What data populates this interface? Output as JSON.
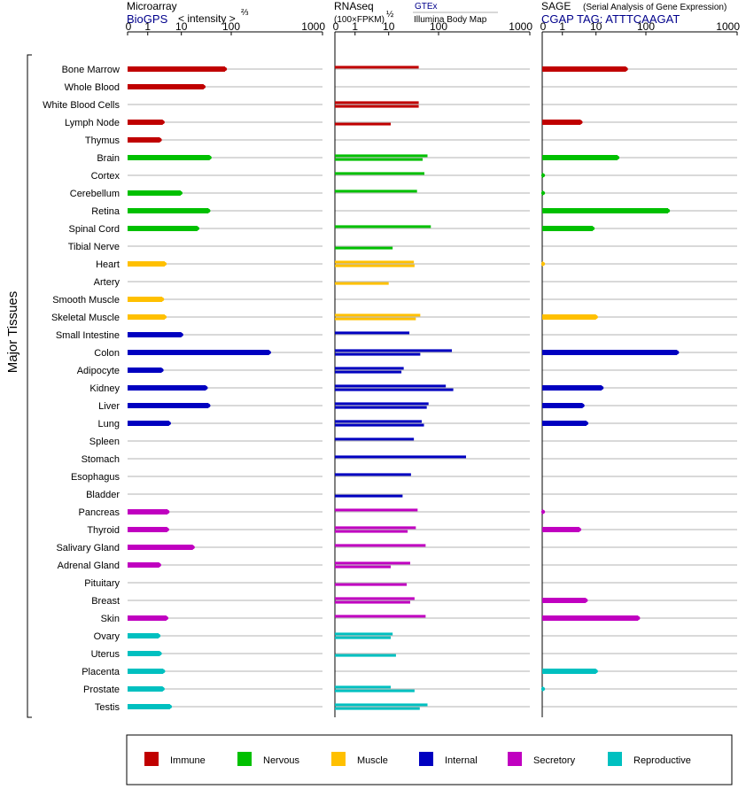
{
  "headers": {
    "microarray": {
      "title": "Microarray",
      "source": "BioGPS",
      "unit": "< intensity >",
      "unit_exp": "⅔"
    },
    "rnaseq": {
      "title": "RNAseq",
      "unit": "(100×FPKM)",
      "unit_exp": "½",
      "source1": "GTEx",
      "source2": "Illumina Body Map"
    },
    "sage": {
      "title": "SAGE",
      "subtitle": "(Serial Analysis of Gene Expression)",
      "tag": "CGAP TAG: ATTTCAAGAT"
    }
  },
  "y_axis_label": "Major Tissues",
  "chart_data": {
    "type": "bar",
    "orientation": "horizontal",
    "scale_note": "non-linear axis; tick labels 0, 1, 10, 100, 1000",
    "ticks": [
      "0",
      "1",
      "10",
      "100",
      "1000"
    ],
    "xlim": [
      0,
      1000
    ],
    "grid": true,
    "legend_position": "bottom",
    "categories": [
      "Bone Marrow",
      "Whole Blood",
      "White Blood Cells",
      "Lymph Node",
      "Thymus",
      "Brain",
      "Cortex",
      "Cerebellum",
      "Retina",
      "Spinal Cord",
      "Tibial Nerve",
      "Heart",
      "Artery",
      "Smooth Muscle",
      "Skeletal Muscle",
      "Small Intestine",
      "Colon",
      "Adipocyte",
      "Kidney",
      "Liver",
      "Lung",
      "Spleen",
      "Stomach",
      "Esophagus",
      "Bladder",
      "Pancreas",
      "Thyroid",
      "Salivary Gland",
      "Adrenal Gland",
      "Pituitary",
      "Breast",
      "Skin",
      "Ovary",
      "Uterus",
      "Placenta",
      "Prostate",
      "Testis"
    ],
    "category_group": [
      "Immune",
      "Immune",
      "Immune",
      "Immune",
      "Immune",
      "Nervous",
      "Nervous",
      "Nervous",
      "Nervous",
      "Nervous",
      "Nervous",
      "Muscle",
      "Muscle",
      "Muscle",
      "Muscle",
      "Internal",
      "Internal",
      "Internal",
      "Internal",
      "Internal",
      "Internal",
      "Internal",
      "Internal",
      "Internal",
      "Internal",
      "Secretory",
      "Secretory",
      "Secretory",
      "Secretory",
      "Secretory",
      "Secretory",
      "Secretory",
      "Reproductive",
      "Reproductive",
      "Reproductive",
      "Reproductive",
      "Reproductive"
    ],
    "groups": [
      {
        "name": "Immune",
        "color": "#c00000"
      },
      {
        "name": "Nervous",
        "color": "#00c000"
      },
      {
        "name": "Muscle",
        "color": "#ffc000"
      },
      {
        "name": "Internal",
        "color": "#0000c0"
      },
      {
        "name": "Secretory",
        "color": "#c000c0"
      },
      {
        "name": "Reproductive",
        "color": "#00c0c0"
      }
    ],
    "panels": [
      {
        "name": "Microarray",
        "series": [
          {
            "values": [
              75,
              28,
              null,
              2.8,
              2.3,
              37,
              null,
              9.5,
              35,
              21,
              null,
              3.2,
              null,
              2.7,
              3.2,
              10,
              260,
              2.6,
              31,
              35,
              4.3,
              null,
              null,
              null,
              null,
              3.9,
              3.8,
              17,
              2.2,
              null,
              null,
              3.6,
              2.1,
              2.3,
              2.9,
              2.8,
              4.6
            ]
          }
        ]
      },
      {
        "name": "RNAseq",
        "series": [
          {
            "name": "GTEx",
            "values": [
              40,
              null,
              40,
              null,
              null,
              60,
              52,
              37,
              null,
              70,
              null,
              32,
              null,
              null,
              43,
              26,
              140,
              20,
              120,
              63,
              46,
              32,
              200,
              28,
              null,
              38,
              35,
              55,
              27,
              null,
              33,
              55,
              12,
              null,
              null,
              11,
              60
            ]
          },
          {
            "name": "Illumina Body Map",
            "values": [
              null,
              null,
              40,
              11,
              null,
              48,
              null,
              null,
              null,
              null,
              12,
              33,
              10,
              null,
              35,
              null,
              43,
              18,
              145,
              58,
              51,
              null,
              null,
              null,
              19,
              null,
              24,
              null,
              11,
              23,
              27,
              null,
              11,
              14,
              null,
              33,
              42
            ]
          }
        ]
      },
      {
        "name": "SAGE",
        "series": [
          {
            "values": [
              40,
              null,
              null,
              3.5,
              null,
              27,
              0.02,
              0.02,
              175,
              8,
              null,
              0.01,
              null,
              null,
              10,
              null,
              220,
              null,
              13,
              4,
              5.2,
              null,
              null,
              null,
              null,
              0.03,
              3.2,
              null,
              null,
              null,
              5,
              70,
              null,
              null,
              10,
              0.03,
              null
            ]
          }
        ]
      }
    ]
  }
}
